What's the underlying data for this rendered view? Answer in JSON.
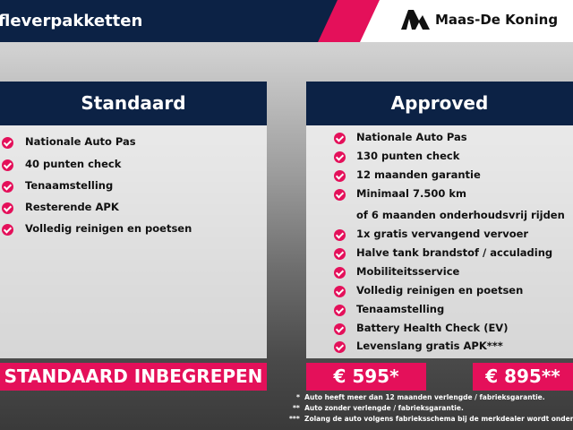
{
  "header": {
    "title": "fleverpakketten",
    "brand": "Maas-De Koning"
  },
  "colors": {
    "navy": "#0c2245",
    "accent": "#e4105a"
  },
  "standaard": {
    "title": "Standaard",
    "items": [
      "Nationale Auto Pas",
      "40 punten check",
      "Tenaamstelling",
      "Resterende APK",
      "Volledig reinigen en poetsen"
    ],
    "price": "STANDAARD INBEGREPEN"
  },
  "approved": {
    "title": "Approved",
    "items": [
      "Nationale Auto Pas",
      "130 punten check",
      "12 maanden garantie",
      "Minimaal 7.500 km",
      "of 6 maanden onderhoudsvrij rijden",
      "1x gratis vervangend vervoer",
      "Halve tank brandstof / acculading",
      "Mobiliteitsservice",
      "Volledig reinigen en poetsen",
      "Tenaamstelling",
      "Battery Health Check (EV)",
      "Levenslang gratis APK***"
    ],
    "price1": "€ 595*",
    "price2": "€ 895**"
  },
  "notes": [
    {
      "mark": "*",
      "text": "Auto heeft meer dan 12 maanden verlengde / fabrieksgarantie."
    },
    {
      "mark": "**",
      "text": "Auto zonder verlengde / fabrieksgarantie."
    },
    {
      "mark": "***",
      "text": "Zolang de auto volgens fabrieksschema bij de merkdealer wordt onderhoud"
    }
  ]
}
